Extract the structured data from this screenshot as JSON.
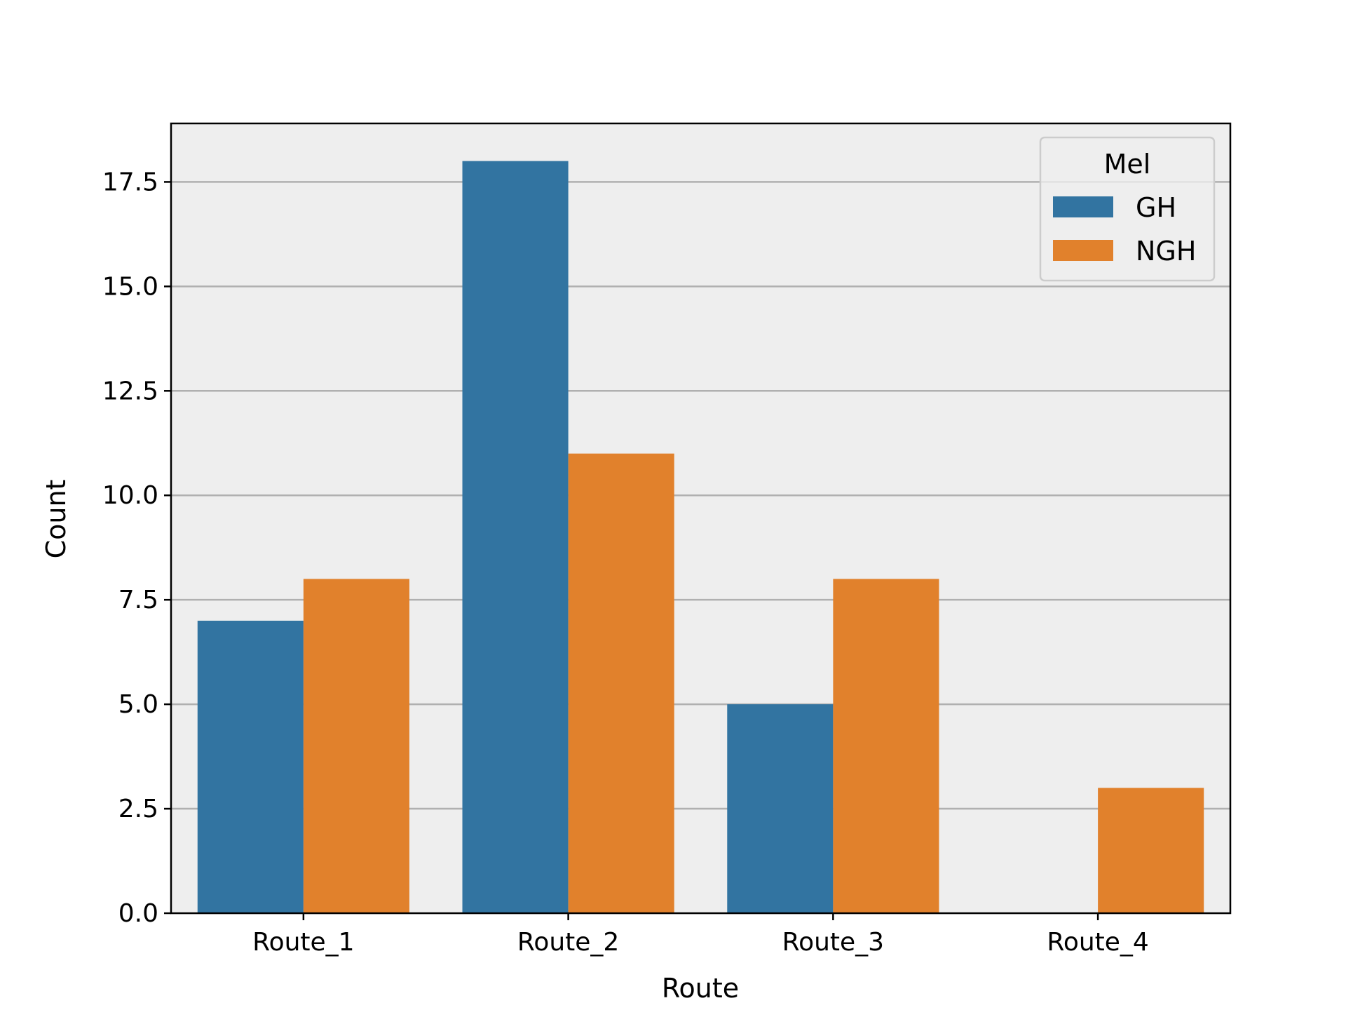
{
  "chart_data": {
    "type": "bar",
    "title": "",
    "xlabel": "Route",
    "ylabel": "Count",
    "categories": [
      "Route_1",
      "Route_2",
      "Route_3",
      "Route_4"
    ],
    "series": [
      {
        "name": "GH",
        "values": [
          7,
          18,
          5,
          0
        ],
        "color": "#3274a1"
      },
      {
        "name": "NGH",
        "values": [
          8,
          11,
          8,
          3
        ],
        "color": "#e1812c"
      }
    ],
    "ylim": [
      0,
      18.9
    ],
    "yticks": [
      0.0,
      2.5,
      5.0,
      7.5,
      10.0,
      12.5,
      15.0,
      17.5
    ],
    "grid": "y",
    "legend": {
      "title": "Mel",
      "placement": "top-right"
    },
    "plot_background": "#eeeeee",
    "grid_color": "#b0b0b0"
  }
}
